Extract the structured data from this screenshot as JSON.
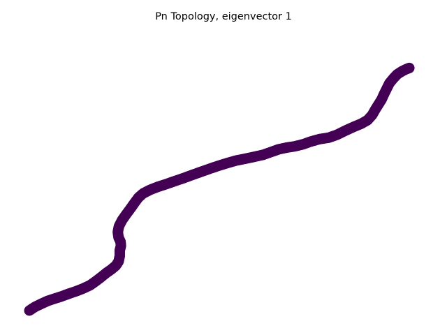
{
  "chart_data": {
    "type": "scatter",
    "title": "Pn Topology, eigenvector 1",
    "axes_visible": false,
    "grid": false,
    "xlim": [
      0,
      1
    ],
    "ylim": [
      0,
      1
    ],
    "marker_color": "#440154",
    "points": [
      [
        0.0,
        0.0
      ],
      [
        0.014,
        0.013
      ],
      [
        0.03,
        0.024
      ],
      [
        0.047,
        0.035
      ],
      [
        0.064,
        0.043
      ],
      [
        0.082,
        0.051
      ],
      [
        0.101,
        0.061
      ],
      [
        0.12,
        0.07
      ],
      [
        0.138,
        0.08
      ],
      [
        0.156,
        0.092
      ],
      [
        0.17,
        0.106
      ],
      [
        0.184,
        0.121
      ],
      [
        0.197,
        0.136
      ],
      [
        0.211,
        0.15
      ],
      [
        0.222,
        0.163
      ],
      [
        0.229,
        0.178
      ],
      [
        0.232,
        0.198
      ],
      [
        0.232,
        0.218
      ],
      [
        0.235,
        0.235
      ],
      [
        0.234,
        0.25
      ],
      [
        0.229,
        0.265
      ],
      [
        0.227,
        0.285
      ],
      [
        0.23,
        0.306
      ],
      [
        0.238,
        0.328
      ],
      [
        0.249,
        0.35
      ],
      [
        0.26,
        0.371
      ],
      [
        0.27,
        0.391
      ],
      [
        0.28,
        0.41
      ],
      [
        0.292,
        0.425
      ],
      [
        0.31,
        0.438
      ],
      [
        0.33,
        0.449
      ],
      [
        0.352,
        0.459
      ],
      [
        0.374,
        0.47
      ],
      [
        0.395,
        0.48
      ],
      [
        0.418,
        0.492
      ],
      [
        0.44,
        0.503
      ],
      [
        0.462,
        0.514
      ],
      [
        0.485,
        0.525
      ],
      [
        0.508,
        0.535
      ],
      [
        0.53,
        0.544
      ],
      [
        0.555,
        0.551
      ],
      [
        0.578,
        0.558
      ],
      [
        0.6,
        0.565
      ],
      [
        0.62,
        0.575
      ],
      [
        0.64,
        0.585
      ],
      [
        0.66,
        0.591
      ],
      [
        0.682,
        0.596
      ],
      [
        0.702,
        0.603
      ],
      [
        0.722,
        0.613
      ],
      [
        0.745,
        0.622
      ],
      [
        0.768,
        0.627
      ],
      [
        0.79,
        0.638
      ],
      [
        0.81,
        0.652
      ],
      [
        0.83,
        0.665
      ],
      [
        0.852,
        0.678
      ],
      [
        0.868,
        0.691
      ],
      [
        0.88,
        0.71
      ],
      [
        0.888,
        0.73
      ],
      [
        0.896,
        0.748
      ],
      [
        0.904,
        0.766
      ],
      [
        0.91,
        0.785
      ],
      [
        0.917,
        0.805
      ],
      [
        0.924,
        0.825
      ],
      [
        0.934,
        0.842
      ],
      [
        0.944,
        0.857
      ],
      [
        0.956,
        0.868
      ],
      [
        0.966,
        0.875
      ],
      [
        0.975,
        0.88
      ]
    ]
  }
}
